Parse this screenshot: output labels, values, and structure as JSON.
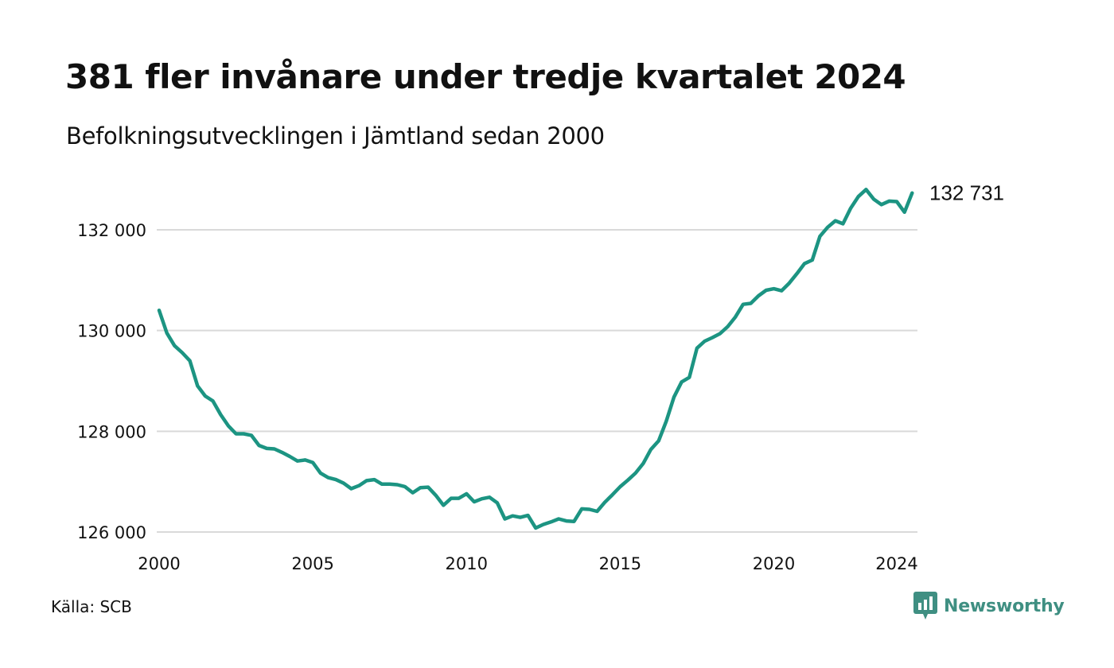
{
  "title": "381 fler invånare under tredje kvartalet 2024",
  "subtitle": "Befolkningsutvecklingen i Jämtland sedan 2000",
  "source": "Källa: SCB",
  "brand": {
    "name": "Newsworthy",
    "icon": "newsworthy-logo-icon",
    "color": "#3f8f82"
  },
  "chart_data": {
    "type": "line",
    "title": "381 fler invånare under tredje kvartalet 2024",
    "subtitle": "Befolkningsutvecklingen i Jämtland sedan 2000",
    "xlabel": "",
    "ylabel": "",
    "x_ticks": [
      2000,
      2005,
      2010,
      2015,
      2020,
      2024
    ],
    "x_tick_labels": [
      "2000",
      "2005",
      "2010",
      "2015",
      "2020",
      "2024"
    ],
    "y_ticks": [
      126000,
      128000,
      130000,
      132000
    ],
    "y_tick_labels": [
      "126 000",
      "128 000",
      "130 000",
      "132 000"
    ],
    "xlim": [
      2000,
      2024.75
    ],
    "ylim": [
      126000,
      133200
    ],
    "grid": "horizontal",
    "line_color": "#1c9482",
    "end_label": "132 731",
    "series": [
      {
        "values": [
          [
            2000.0,
            130400
          ],
          [
            2000.25,
            129950
          ],
          [
            2000.5,
            129700
          ],
          [
            2000.75,
            129560
          ],
          [
            2001.0,
            129400
          ],
          [
            2001.25,
            128900
          ],
          [
            2001.5,
            128700
          ],
          [
            2001.75,
            128600
          ],
          [
            2002.0,
            128330
          ],
          [
            2002.25,
            128110
          ],
          [
            2002.5,
            127950
          ],
          [
            2002.75,
            127950
          ],
          [
            2003.0,
            127920
          ],
          [
            2003.25,
            127720
          ],
          [
            2003.5,
            127660
          ],
          [
            2003.75,
            127650
          ],
          [
            2004.0,
            127580
          ],
          [
            2004.25,
            127500
          ],
          [
            2004.5,
            127410
          ],
          [
            2004.75,
            127430
          ],
          [
            2005.0,
            127380
          ],
          [
            2005.25,
            127170
          ],
          [
            2005.5,
            127080
          ],
          [
            2005.75,
            127040
          ],
          [
            2006.0,
            126970
          ],
          [
            2006.25,
            126860
          ],
          [
            2006.5,
            126920
          ],
          [
            2006.75,
            127020
          ],
          [
            2007.0,
            127040
          ],
          [
            2007.25,
            126950
          ],
          [
            2007.5,
            126950
          ],
          [
            2007.75,
            126940
          ],
          [
            2008.0,
            126900
          ],
          [
            2008.25,
            126780
          ],
          [
            2008.5,
            126880
          ],
          [
            2008.75,
            126890
          ],
          [
            2009.0,
            126730
          ],
          [
            2009.25,
            126530
          ],
          [
            2009.5,
            126670
          ],
          [
            2009.75,
            126670
          ],
          [
            2010.0,
            126760
          ],
          [
            2010.25,
            126600
          ],
          [
            2010.5,
            126660
          ],
          [
            2010.75,
            126690
          ],
          [
            2011.0,
            126580
          ],
          [
            2011.25,
            126260
          ],
          [
            2011.5,
            126320
          ],
          [
            2011.75,
            126290
          ],
          [
            2012.0,
            126330
          ],
          [
            2012.25,
            126080
          ],
          [
            2012.5,
            126150
          ],
          [
            2012.75,
            126200
          ],
          [
            2013.0,
            126260
          ],
          [
            2013.25,
            126220
          ],
          [
            2013.5,
            126210
          ],
          [
            2013.75,
            126460
          ],
          [
            2014.0,
            126450
          ],
          [
            2014.25,
            126410
          ],
          [
            2014.5,
            126590
          ],
          [
            2014.75,
            126740
          ],
          [
            2015.0,
            126900
          ],
          [
            2015.25,
            127030
          ],
          [
            2015.5,
            127170
          ],
          [
            2015.75,
            127360
          ],
          [
            2016.0,
            127640
          ],
          [
            2016.25,
            127810
          ],
          [
            2016.5,
            128200
          ],
          [
            2016.75,
            128680
          ],
          [
            2017.0,
            128980
          ],
          [
            2017.25,
            129070
          ],
          [
            2017.5,
            129650
          ],
          [
            2017.75,
            129790
          ],
          [
            2018.0,
            129860
          ],
          [
            2018.25,
            129940
          ],
          [
            2018.5,
            130080
          ],
          [
            2018.75,
            130270
          ],
          [
            2019.0,
            130520
          ],
          [
            2019.25,
            130540
          ],
          [
            2019.5,
            130690
          ],
          [
            2019.75,
            130800
          ],
          [
            2020.0,
            130830
          ],
          [
            2020.25,
            130790
          ],
          [
            2020.5,
            130940
          ],
          [
            2020.75,
            131130
          ],
          [
            2021.0,
            131330
          ],
          [
            2021.25,
            131400
          ],
          [
            2021.5,
            131870
          ],
          [
            2021.75,
            132050
          ],
          [
            2022.0,
            132180
          ],
          [
            2022.25,
            132120
          ],
          [
            2022.5,
            132430
          ],
          [
            2022.75,
            132660
          ],
          [
            2023.0,
            132800
          ],
          [
            2023.25,
            132610
          ],
          [
            2023.5,
            132500
          ],
          [
            2023.75,
            132570
          ],
          [
            2024.0,
            132560
          ],
          [
            2024.25,
            132350
          ],
          [
            2024.5,
            132731
          ]
        ]
      }
    ]
  }
}
